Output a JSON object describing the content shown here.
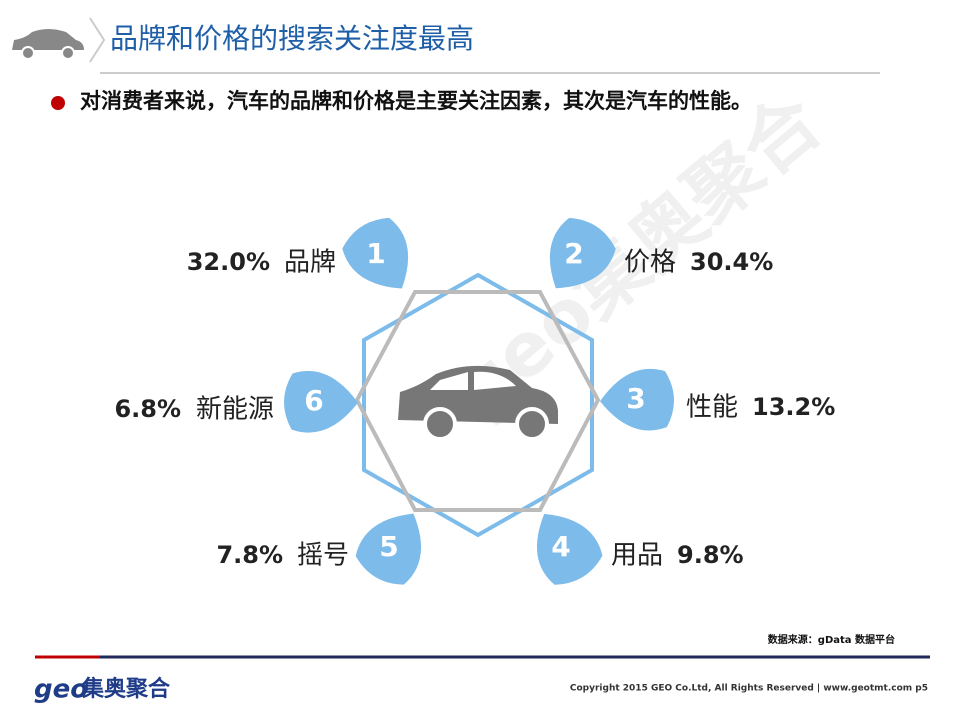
{
  "header": {
    "title": "品牌和价格的搜索关注度最高"
  },
  "bullet": "对消费者来说，汽车的品牌和价格是主要关注因素，其次是汽车的性能。",
  "watermark": "geo集奥聚合",
  "items": [
    {
      "rank": "1",
      "label": "品牌",
      "value": "32.0%"
    },
    {
      "rank": "2",
      "label": "价格",
      "value": "30.4%"
    },
    {
      "rank": "3",
      "label": "性能",
      "value": "13.2%"
    },
    {
      "rank": "4",
      "label": "用品",
      "value": "9.8%"
    },
    {
      "rank": "5",
      "label": "摇号",
      "value": "7.8%"
    },
    {
      "rank": "6",
      "label": "新能源",
      "value": "6.8%"
    }
  ],
  "footer": {
    "source": "数据来源：gData  数据平台",
    "logo_latin": "geo",
    "logo_cn": "集奥聚合",
    "copyright": "Copyright 2015 GEO Co.Ltd, All Rights Reserved  |  www.geotmt.com p5"
  }
}
